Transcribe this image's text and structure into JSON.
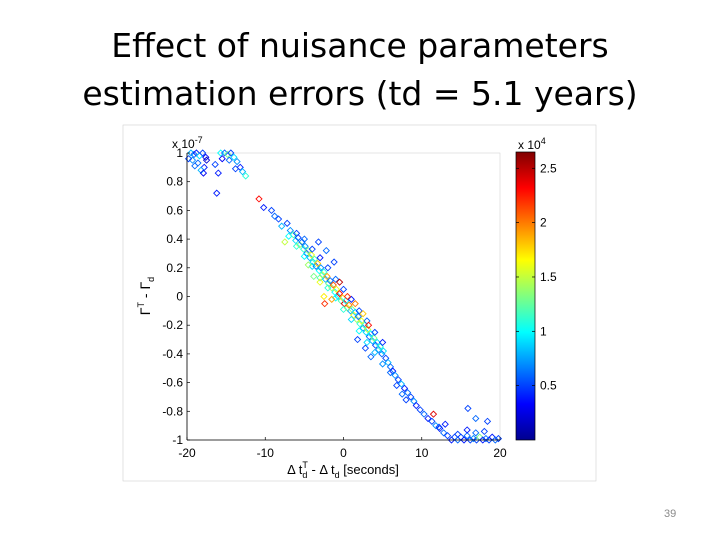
{
  "slide": {
    "title_line1": "Effect of nuisance parameters",
    "title_line2": "estimation errors (td = 5.1 years)",
    "page_number": "39"
  },
  "chart_data": {
    "type": "scatter",
    "x_label": "Δ t_d^T - Δ t_d [seconds]",
    "y_label": "Γ^T - Γ_d",
    "y_multiplier": "x 10^-7",
    "colorbar_multiplier": "x 10^4",
    "xlim": [
      -20,
      20
    ],
    "ylim": [
      -1,
      1
    ],
    "x_ticks": [
      -20,
      -10,
      0,
      10,
      20
    ],
    "y_ticks": [
      -1,
      -0.8,
      -0.6,
      -0.4,
      -0.2,
      0,
      0.2,
      0.4,
      0.6,
      0.8,
      1
    ],
    "colorbar_range": [
      0,
      2.65
    ],
    "colorbar_ticks": [
      0.5,
      1,
      1.5,
      2,
      2.5
    ],
    "colormap": "jet",
    "marker": "diamond",
    "grid": false,
    "points": [
      [
        -19.5,
        1.0,
        0.8
      ],
      [
        -19.1,
        0.99,
        0.6
      ],
      [
        -18.8,
        1.0,
        0.4
      ],
      [
        -18.4,
        0.98,
        0.9
      ],
      [
        -18.0,
        1.0,
        0.5
      ],
      [
        -17.6,
        0.97,
        0.3
      ],
      [
        -19.3,
        0.95,
        0.7
      ],
      [
        -18.6,
        0.93,
        0.6
      ],
      [
        -17.8,
        0.9,
        0.4
      ],
      [
        -17.5,
        0.95,
        0.2
      ],
      [
        -19.8,
        0.96,
        0.5
      ],
      [
        -18.2,
        0.88,
        0.8
      ],
      [
        -17.9,
        0.86,
        0.3
      ],
      [
        -19.0,
        0.91,
        0.6
      ],
      [
        -15.7,
        1.0,
        1.0
      ],
      [
        -15.2,
        1.0,
        0.6
      ],
      [
        -14.8,
        0.99,
        1.3
      ],
      [
        -14.4,
        1.0,
        0.5
      ],
      [
        -14.0,
        0.97,
        0.9
      ],
      [
        -13.6,
        0.94,
        0.7
      ],
      [
        -13.2,
        0.9,
        0.4
      ],
      [
        -12.9,
        0.87,
        0.8
      ],
      [
        -12.5,
        0.84,
        1.1
      ],
      [
        -15.5,
        0.96,
        0.3
      ],
      [
        -14.6,
        0.95,
        0.6
      ],
      [
        -13.8,
        0.89,
        0.5
      ],
      [
        -16.4,
        0.92,
        0.5
      ],
      [
        -16.0,
        0.86,
        0.4
      ],
      [
        -16.2,
        0.72,
        0.4
      ],
      [
        -10.8,
        0.68,
        2.3
      ],
      [
        -10.2,
        0.62,
        0.4
      ],
      [
        -8.3,
        0.54,
        0.5
      ],
      [
        -7.9,
        0.49,
        0.8
      ],
      [
        -7.2,
        0.51,
        0.5
      ],
      [
        -6.8,
        0.46,
        0.7
      ],
      [
        -6.4,
        0.43,
        1.2
      ],
      [
        -6.1,
        0.39,
        0.9
      ],
      [
        -5.8,
        0.41,
        0.5
      ],
      [
        -5.6,
        0.36,
        1.4
      ],
      [
        -5.3,
        0.38,
        0.6
      ],
      [
        -5.1,
        0.33,
        1.1
      ],
      [
        -4.9,
        0.35,
        0.7
      ],
      [
        -4.7,
        0.3,
        0.5
      ],
      [
        -4.5,
        0.32,
        1.3
      ],
      [
        -4.3,
        0.27,
        0.8
      ],
      [
        -4.1,
        0.29,
        1.6
      ],
      [
        -3.9,
        0.24,
        0.9
      ],
      [
        -3.7,
        0.26,
        1.2
      ],
      [
        -3.5,
        0.21,
        0.6
      ],
      [
        -3.3,
        0.23,
        1.8
      ],
      [
        -3.1,
        0.18,
        1.0
      ],
      [
        -2.9,
        0.2,
        0.7
      ],
      [
        -2.7,
        0.15,
        1.5
      ],
      [
        -2.5,
        0.17,
        1.1
      ],
      [
        -2.3,
        0.12,
        0.8
      ],
      [
        -2.1,
        0.14,
        1.9
      ],
      [
        -1.9,
        0.09,
        1.3
      ],
      [
        -1.7,
        0.11,
        0.6
      ],
      [
        -1.5,
        0.06,
        1.4
      ],
      [
        -1.3,
        0.08,
        2.1
      ],
      [
        -1.1,
        0.03,
        1.0
      ],
      [
        -0.9,
        0.05,
        1.6
      ],
      [
        -0.7,
        0.0,
        0.9
      ],
      [
        -0.5,
        0.02,
        2.3
      ],
      [
        -0.3,
        -0.03,
        1.2
      ],
      [
        -0.1,
        -0.01,
        1.8
      ],
      [
        0.1,
        -0.05,
        2.4
      ],
      [
        0.3,
        -0.03,
        1.0
      ],
      [
        0.5,
        -0.08,
        1.5
      ],
      [
        0.7,
        -0.06,
        2.0
      ],
      [
        0.9,
        -0.1,
        0.8
      ],
      [
        1.1,
        -0.09,
        1.3
      ],
      [
        1.3,
        -0.13,
        1.7
      ],
      [
        1.5,
        -0.11,
        0.9
      ],
      [
        1.7,
        -0.16,
        1.4
      ],
      [
        1.9,
        -0.14,
        0.6
      ],
      [
        2.1,
        -0.19,
        1.1
      ],
      [
        2.3,
        -0.17,
        1.6
      ],
      [
        2.5,
        -0.22,
        0.7
      ],
      [
        2.7,
        -0.2,
        1.2
      ],
      [
        2.9,
        -0.25,
        0.9
      ],
      [
        3.1,
        -0.23,
        1.5
      ],
      [
        3.3,
        -0.28,
        0.6
      ],
      [
        3.5,
        -0.26,
        1.0
      ],
      [
        3.7,
        -0.31,
        0.8
      ],
      [
        3.9,
        -0.29,
        1.3
      ],
      [
        4.1,
        -0.34,
        0.5
      ],
      [
        4.3,
        -0.32,
        0.9
      ],
      [
        4.5,
        -0.37,
        0.7
      ],
      [
        4.7,
        -0.35,
        1.1
      ],
      [
        4.9,
        -0.4,
        0.6
      ],
      [
        5.1,
        -0.38,
        0.9
      ],
      [
        5.4,
        -0.43,
        0.5
      ],
      [
        5.7,
        -0.46,
        0.8
      ],
      [
        6.0,
        -0.49,
        0.6
      ],
      [
        6.3,
        -0.52,
        0.4
      ],
      [
        6.6,
        -0.55,
        0.7
      ],
      [
        7.0,
        -0.58,
        0.5
      ],
      [
        7.4,
        -0.61,
        0.8
      ],
      [
        7.8,
        -0.64,
        0.4
      ],
      [
        8.2,
        -0.67,
        0.6
      ],
      [
        8.6,
        -0.7,
        0.5
      ],
      [
        9.0,
        -0.73,
        0.7
      ],
      [
        -6.0,
        0.44,
        0.5
      ],
      [
        -5.0,
        0.4,
        0.6
      ],
      [
        -4.0,
        0.33,
        0.5
      ],
      [
        -3.0,
        0.27,
        0.4
      ],
      [
        -2.0,
        0.2,
        0.5
      ],
      [
        -1.0,
        0.12,
        0.6
      ],
      [
        0.0,
        0.05,
        0.5
      ],
      [
        1.0,
        -0.02,
        0.4
      ],
      [
        2.0,
        -0.1,
        0.5
      ],
      [
        3.0,
        -0.17,
        0.6
      ],
      [
        4.0,
        -0.25,
        0.5
      ],
      [
        5.0,
        -0.32,
        0.4
      ],
      [
        -7.0,
        0.42,
        1.0
      ],
      [
        -6.0,
        0.35,
        1.1
      ],
      [
        -5.0,
        0.28,
        1.0
      ],
      [
        -4.0,
        0.21,
        0.9
      ],
      [
        -3.0,
        0.13,
        1.2
      ],
      [
        -2.0,
        0.06,
        1.1
      ],
      [
        -1.0,
        -0.01,
        1.0
      ],
      [
        0.0,
        -0.09,
        1.1
      ],
      [
        1.0,
        -0.16,
        0.9
      ],
      [
        2.0,
        -0.24,
        1.0
      ],
      [
        3.0,
        -0.32,
        0.9
      ],
      [
        4.0,
        -0.39,
        0.8
      ],
      [
        5.0,
        -0.47,
        0.7
      ],
      [
        6.0,
        -0.53,
        0.6
      ],
      [
        -3.0,
        0.1,
        1.6
      ],
      [
        -2.5,
        0.0,
        1.7
      ],
      [
        -2.4,
        -0.05,
        2.2
      ],
      [
        -1.5,
        -0.02,
        1.9
      ],
      [
        -0.5,
        0.1,
        2.5
      ],
      [
        0.5,
        0.0,
        2.2
      ],
      [
        1.5,
        -0.05,
        2.0
      ],
      [
        2.5,
        -0.12,
        1.8
      ],
      [
        3.2,
        -0.2,
        2.3
      ],
      [
        -4.5,
        0.22,
        1.4
      ],
      [
        -3.8,
        0.14,
        1.3
      ],
      [
        1.8,
        -0.3,
        0.5
      ],
      [
        2.8,
        -0.36,
        0.5
      ],
      [
        3.5,
        -0.42,
        0.6
      ],
      [
        -3.2,
        0.38,
        0.5
      ],
      [
        -2.2,
        0.32,
        0.6
      ],
      [
        -1.2,
        0.24,
        0.5
      ],
      [
        -8.8,
        0.56,
        0.6
      ],
      [
        -9.2,
        0.6,
        0.5
      ],
      [
        6.8,
        -0.62,
        0.5
      ],
      [
        7.5,
        -0.68,
        0.6
      ],
      [
        8.0,
        -0.72,
        0.5
      ],
      [
        9.3,
        -0.76,
        0.4
      ],
      [
        9.8,
        -0.79,
        0.5
      ],
      [
        10.3,
        -0.82,
        0.6
      ],
      [
        10.8,
        -0.85,
        0.4
      ],
      [
        11.3,
        -0.87,
        0.5
      ],
      [
        11.8,
        -0.9,
        0.7
      ],
      [
        12.3,
        -0.92,
        0.4
      ],
      [
        12.8,
        -0.95,
        0.6
      ],
      [
        13.3,
        -0.97,
        0.5
      ],
      [
        13.8,
        -1.0,
        0.4
      ],
      [
        14.2,
        -0.98,
        0.5
      ],
      [
        14.6,
        -1.0,
        0.6
      ],
      [
        15.0,
        -0.98,
        0.5
      ],
      [
        15.4,
        -1.0,
        0.4
      ],
      [
        15.8,
        -0.97,
        0.6
      ],
      [
        16.2,
        -1.0,
        0.5
      ],
      [
        16.6,
        -0.99,
        0.7
      ],
      [
        17.0,
        -1.0,
        0.5
      ],
      [
        17.4,
        -0.98,
        1.3
      ],
      [
        17.8,
        -1.0,
        0.4
      ],
      [
        18.2,
        -0.99,
        0.6
      ],
      [
        18.6,
        -1.0,
        0.5
      ],
      [
        19.0,
        -0.98,
        0.4
      ],
      [
        19.4,
        -1.0,
        0.6
      ],
      [
        19.8,
        -0.99,
        0.5
      ],
      [
        14.6,
        -0.96,
        0.5
      ],
      [
        15.8,
        -0.93,
        0.4
      ],
      [
        16.9,
        -0.95,
        0.6
      ],
      [
        18.0,
        -0.94,
        0.5
      ],
      [
        12.2,
        -0.91,
        0.5
      ],
      [
        13.0,
        -0.89,
        0.4
      ],
      [
        15.9,
        -0.78,
        0.5
      ],
      [
        16.9,
        -0.85,
        0.6
      ],
      [
        18.4,
        -0.87,
        0.5
      ],
      [
        11.5,
        -0.82,
        2.4
      ],
      [
        -7.5,
        0.38,
        1.5
      ]
    ]
  }
}
